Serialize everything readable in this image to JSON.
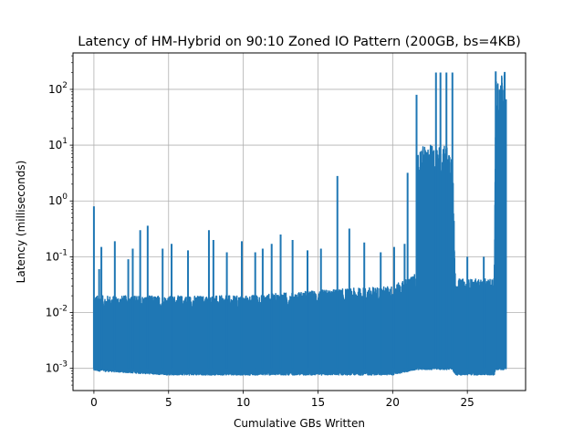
{
  "chart_data": {
    "type": "line",
    "title": "Latency of HM-Hybrid on 90:10 Zoned IO Pattern (200GB, bs=4KB)",
    "xlabel": "Cumulative GBs Written",
    "ylabel": "Latency (milliseconds)",
    "xlim": [
      -1.4,
      28.9
    ],
    "ylim": [
      0.0004,
      450
    ],
    "yscale": "log",
    "grid": true,
    "color": "#1f77b4",
    "x_ticks": [
      0,
      5,
      10,
      15,
      20,
      25
    ],
    "x_tick_labels": [
      "0",
      "5",
      "10",
      "15",
      "20",
      "25"
    ],
    "y_ticks": [
      0.001,
      0.01,
      0.1,
      1,
      10,
      100
    ],
    "y_tick_labels": [
      "10^-3",
      "10^-2",
      "10^-1",
      "10^0",
      "10^1",
      "10^2"
    ],
    "x_range": [
      0,
      27.6
    ],
    "baseline_band": [
      {
        "x": 0.0,
        "low": 0.00095,
        "high": 0.02
      },
      {
        "x": 5.0,
        "low": 0.0008,
        "high": 0.02
      },
      {
        "x": 10.0,
        "low": 0.0008,
        "high": 0.02
      },
      {
        "x": 15.0,
        "low": 0.0008,
        "high": 0.025
      },
      {
        "x": 20.0,
        "low": 0.0008,
        "high": 0.03
      },
      {
        "x": 21.6,
        "low": 0.001,
        "high": 0.05
      },
      {
        "x": 21.7,
        "low": 0.001,
        "high": 10
      },
      {
        "x": 24.0,
        "low": 0.001,
        "high": 10
      },
      {
        "x": 24.2,
        "low": 0.0008,
        "high": 0.04
      },
      {
        "x": 26.8,
        "low": 0.0008,
        "high": 0.04
      },
      {
        "x": 26.9,
        "low": 0.001,
        "high": 200
      },
      {
        "x": 27.6,
        "low": 0.001,
        "high": 200
      }
    ],
    "spikes": [
      {
        "x": 0.0,
        "y": 0.8
      },
      {
        "x": 0.35,
        "y": 0.06
      },
      {
        "x": 0.5,
        "y": 0.15
      },
      {
        "x": 1.4,
        "y": 0.19
      },
      {
        "x": 2.3,
        "y": 0.09
      },
      {
        "x": 2.6,
        "y": 0.14
      },
      {
        "x": 3.1,
        "y": 0.3
      },
      {
        "x": 3.6,
        "y": 0.36
      },
      {
        "x": 4.6,
        "y": 0.14
      },
      {
        "x": 5.2,
        "y": 0.17
      },
      {
        "x": 6.3,
        "y": 0.13
      },
      {
        "x": 7.7,
        "y": 0.3
      },
      {
        "x": 8.0,
        "y": 0.2
      },
      {
        "x": 8.9,
        "y": 0.12
      },
      {
        "x": 9.9,
        "y": 0.19
      },
      {
        "x": 10.8,
        "y": 0.12
      },
      {
        "x": 11.3,
        "y": 0.14
      },
      {
        "x": 11.9,
        "y": 0.17
      },
      {
        "x": 12.5,
        "y": 0.25
      },
      {
        "x": 13.3,
        "y": 0.2
      },
      {
        "x": 14.3,
        "y": 0.13
      },
      {
        "x": 15.2,
        "y": 0.14
      },
      {
        "x": 16.3,
        "y": 2.8
      },
      {
        "x": 17.1,
        "y": 0.32
      },
      {
        "x": 18.1,
        "y": 0.18
      },
      {
        "x": 19.2,
        "y": 0.12
      },
      {
        "x": 20.1,
        "y": 0.15
      },
      {
        "x": 20.8,
        "y": 0.17
      },
      {
        "x": 21.0,
        "y": 3.2
      },
      {
        "x": 21.6,
        "y": 80
      },
      {
        "x": 22.9,
        "y": 200
      },
      {
        "x": 23.2,
        "y": 200
      },
      {
        "x": 23.6,
        "y": 200
      },
      {
        "x": 24.0,
        "y": 200
      },
      {
        "x": 25.0,
        "y": 0.1
      },
      {
        "x": 26.1,
        "y": 0.1
      },
      {
        "x": 26.9,
        "y": 210
      },
      {
        "x": 27.5,
        "y": 205
      }
    ]
  }
}
